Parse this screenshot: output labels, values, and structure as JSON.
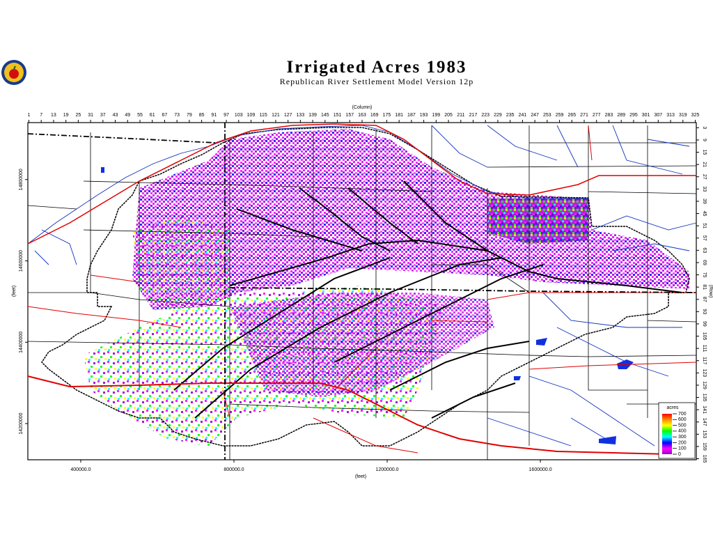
{
  "header": {
    "title": "Irrigated Acres 1983",
    "subtitle": "Republican River Settlement Model Version 12p"
  },
  "chart_data": {
    "type": "map",
    "x_label": "(feet)",
    "y_label": "(feet)",
    "x2_label": "(Column)",
    "y2_label": "(Row)",
    "xlim": [
      262000,
      2007000
    ],
    "xticks": [
      {
        "value": 400000,
        "label": "400000.0"
      },
      {
        "value": 800000,
        "label": "800000.0"
      },
      {
        "value": 1200000,
        "label": "1200000.0"
      },
      {
        "value": 1600000,
        "label": "1600000.0"
      }
    ],
    "ylim": [
      14111000,
      14940000
    ],
    "yticks": [
      14200000,
      14400000,
      14600000,
      14800000
    ],
    "x2lim": [
      0.5,
      325.5
    ],
    "x2ticks": [
      1,
      7,
      13,
      19,
      25,
      31,
      37,
      43,
      49,
      55,
      61,
      67,
      73,
      79,
      85,
      91,
      97,
      103,
      109,
      115,
      121,
      127,
      133,
      139,
      145,
      151,
      157,
      163,
      169,
      175,
      181,
      187,
      193,
      199,
      205,
      211,
      217,
      223,
      229,
      235,
      241,
      247,
      253,
      259,
      265,
      271,
      277,
      283,
      289,
      295,
      301,
      307,
      313,
      319,
      325
    ],
    "y2lim": [
      0.5,
      165.5
    ],
    "y2ticks": [
      3,
      9,
      15,
      21,
      27,
      33,
      39,
      45,
      51,
      57,
      63,
      69,
      75,
      81,
      87,
      93,
      99,
      105,
      111,
      117,
      123,
      129,
      135,
      141,
      147,
      153,
      159,
      165
    ],
    "colorbar": {
      "title": "acres",
      "lim": [
        0,
        700
      ],
      "ticks": [
        0,
        100,
        200,
        300,
        400,
        500,
        600,
        700
      ],
      "colors": [
        "#9900cc",
        "#ff00ff",
        "#0000ff",
        "#00ffff",
        "#00ff00",
        "#ffff00",
        "#ff8800",
        "#ff0000"
      ]
    }
  }
}
